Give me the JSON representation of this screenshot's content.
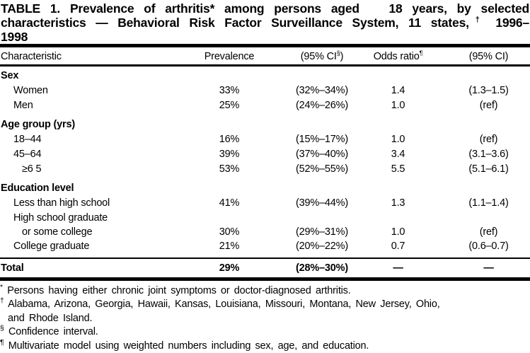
{
  "title": {
    "line1": "TABLE 1. Prevalence of arthritis* among persons aged   18 years, by selected",
    "line2_pre": "characteristics — Behavioral Risk Factor Surveillance System, 11 states,",
    "line2_sup": "†",
    "line2_post": " 1996–",
    "line3": "1998"
  },
  "columns": {
    "characteristic": "Characteristic",
    "prevalence": "Prevalence",
    "ci1_pre": "(95% CI",
    "ci1_sup": "§",
    "ci1_post": ")",
    "odds_pre": "Odds ratio",
    "odds_sup": "¶",
    "ci2": "(95% CI)"
  },
  "sections": [
    {
      "header": "Sex",
      "rows": [
        {
          "label": "Women",
          "prevalence": "33%",
          "ci": "(32%–34%)",
          "odds": "1.4",
          "odds_ci": "(1.3–1.5)"
        },
        {
          "label": "Men",
          "prevalence": "25%",
          "ci": "(24%–26%)",
          "odds": "1.0",
          "odds_ci": "(ref)"
        }
      ]
    },
    {
      "header": "Age group (yrs)",
      "rows": [
        {
          "label": "18–44",
          "prevalence": "16%",
          "ci": "(15%–17%)",
          "odds": "1.0",
          "odds_ci": "(ref)"
        },
        {
          "label": "45–64",
          "prevalence": "39%",
          "ci": "(37%–40%)",
          "odds": "3.4",
          "odds_ci": "(3.1–3.6)"
        },
        {
          "label": "≥6 5",
          "prevalence": "53%",
          "ci": "(52%–55%)",
          "odds": "5.5",
          "odds_ci": "(5.1–6.1)"
        }
      ]
    },
    {
      "header": "Education level",
      "rows": [
        {
          "label": "Less than high school",
          "prevalence": "41%",
          "ci": "(39%–44%)",
          "odds": "1.3",
          "odds_ci": "(1.1–1.4)"
        },
        {
          "label": "High school graduate",
          "label2": "or some college",
          "prevalence": "30%",
          "ci": "(29%–31%)",
          "odds": "1.0",
          "odds_ci": "(ref)"
        },
        {
          "label": "College graduate",
          "prevalence": "21%",
          "ci": "(20%–22%)",
          "odds": "0.7",
          "odds_ci": "(0.6–0.7)"
        }
      ]
    }
  ],
  "total": {
    "label": "Total",
    "prevalence": "29%",
    "ci": "(28%–30%)",
    "odds": "—",
    "odds_ci": "—"
  },
  "footnotes": [
    {
      "marker": "*",
      "lines": [
        "Persons having either chronic joint symptoms or doctor-diagnosed arthritis."
      ]
    },
    {
      "marker": "†",
      "lines": [
        "Alabama, Arizona, Georgia, Hawaii, Kansas, Louisiana, Missouri, Montana, New Jersey, Ohio,",
        "and Rhode Island."
      ]
    },
    {
      "marker": "§",
      "lines": [
        "Confidence interval."
      ]
    },
    {
      "marker": "¶",
      "lines": [
        "Multivariate model using weighted numbers including sex, age, and education."
      ]
    }
  ],
  "colors": {
    "text": "#000000",
    "background": "#ffffff",
    "rule": "#000000"
  }
}
